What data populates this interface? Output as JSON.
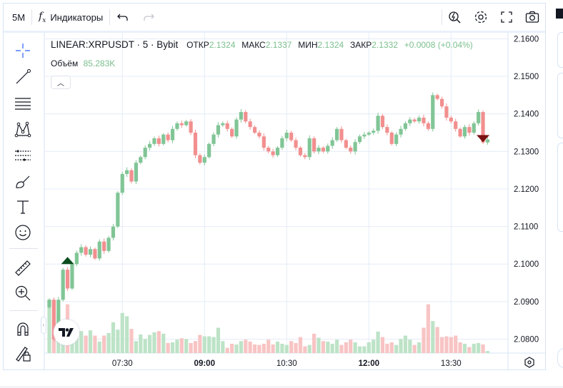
{
  "toolbar": {
    "interval": "5M",
    "indicators": "Индикаторы",
    "icons": [
      "undo-icon",
      "redo-icon",
      "quick-search-icon",
      "settings-icon",
      "fullscreen-icon",
      "camera-icon"
    ]
  },
  "legend": {
    "symbol": "LINEAR:XRPUSDT · 5 · Bybit",
    "open_label": "ОТКР",
    "open": "2.1324",
    "high_label": "МАКС",
    "high": "2.1337",
    "low_label": "МИН",
    "low": "2.1324",
    "close_label": "ЗАКР",
    "close": "2.1332",
    "change": "+0.0008 (+0.04%)",
    "volume_label": "Объём",
    "volume": "85.283K"
  },
  "left_tools": [
    "crosshair",
    "trend-line",
    "fib",
    "pattern",
    "prediction",
    "brush",
    "text",
    "emoji",
    "ruler",
    "zoom-in",
    "magnet",
    "lock-draw"
  ],
  "colors": {
    "up": "#81c596",
    "down": "#f28f8f",
    "up_vol": "#bde3c7",
    "down_vol": "#f8c4c4",
    "grid": "#e4ecf7"
  },
  "chart_data": {
    "type": "candlestick",
    "price_ticks": [
      "2.1600",
      "2.1500",
      "2.1400",
      "2.1300",
      "2.1200",
      "2.1100",
      "2.1000",
      "2.0900",
      "2.0800"
    ],
    "time_ticks": [
      {
        "label": "07:30",
        "bold": false
      },
      {
        "label": "09:00",
        "bold": true
      },
      {
        "label": "10:30",
        "bold": false
      },
      {
        "label": "12:00",
        "bold": true
      },
      {
        "label": "13:30",
        "bold": false
      }
    ],
    "start_time": "06:10",
    "interval_min": 5,
    "first_open": 2.0885,
    "closes": [
      2.0905,
      2.08,
      2.0905,
      2.0985,
      2.0935,
      2.1,
      2.103,
      2.1045,
      2.1025,
      2.104,
      2.1015,
      2.106,
      2.1035,
      2.107,
      2.11,
      2.119,
      2.124,
      2.125,
      2.122,
      2.127,
      2.1285,
      2.131,
      2.132,
      2.1335,
      2.132,
      2.1345,
      2.133,
      2.136,
      2.1375,
      2.137,
      2.138,
      2.135,
      2.129,
      2.127,
      2.1285,
      2.132,
      2.1345,
      2.137,
      2.1375,
      2.136,
      2.134,
      2.1385,
      2.1405,
      2.138,
      2.1365,
      2.135,
      2.134,
      2.131,
      2.13,
      2.129,
      2.131,
      2.1335,
      2.135,
      2.133,
      2.131,
      2.129,
      2.1285,
      2.1335,
      2.13,
      2.131,
      2.13,
      2.1315,
      2.133,
      2.136,
      2.133,
      2.131,
      2.13,
      2.1325,
      2.134,
      2.1345,
      2.135,
      2.1355,
      2.1395,
      2.1365,
      2.135,
      2.132,
      2.1345,
      2.136,
      2.1375,
      2.1385,
      2.138,
      2.139,
      2.1375,
      2.136,
      2.145,
      2.144,
      2.142,
      2.139,
      2.138,
      2.136,
      2.134,
      2.1365,
      2.135,
      2.1375,
      2.1405,
      2.1324,
      2.1332
    ],
    "volumes_k": [
      2240,
      1960,
      1620,
      1260,
      2040,
      1120,
      980,
      920,
      730,
      950,
      730,
      480,
      730,
      840,
      1290,
      980,
      1680,
      1540,
      1010,
      500,
      780,
      590,
      760,
      870,
      920,
      810,
      420,
      450,
      560,
      620,
      590,
      420,
      500,
      760,
      700,
      700,
      670,
      1060,
      500,
      220,
      390,
      360,
      500,
      560,
      480,
      360,
      340,
      390,
      560,
      360,
      480,
      390,
      340,
      500,
      420,
      670,
      280,
      340,
      810,
      640,
      500,
      480,
      390,
      560,
      340,
      450,
      560,
      450,
      280,
      280,
      450,
      560,
      900,
      670,
      390,
      450,
      340,
      590,
      730,
      560,
      340,
      450,
      1060,
      2040,
      1340,
      1090,
      670,
      700,
      670,
      730,
      450,
      390,
      250,
      390,
      420,
      360,
      85.283
    ],
    "markers": [
      {
        "type": "buy",
        "index": 4
      },
      {
        "type": "sell",
        "index": 95
      }
    ],
    "ylim": [
      2.0763,
      2.1616
    ]
  }
}
